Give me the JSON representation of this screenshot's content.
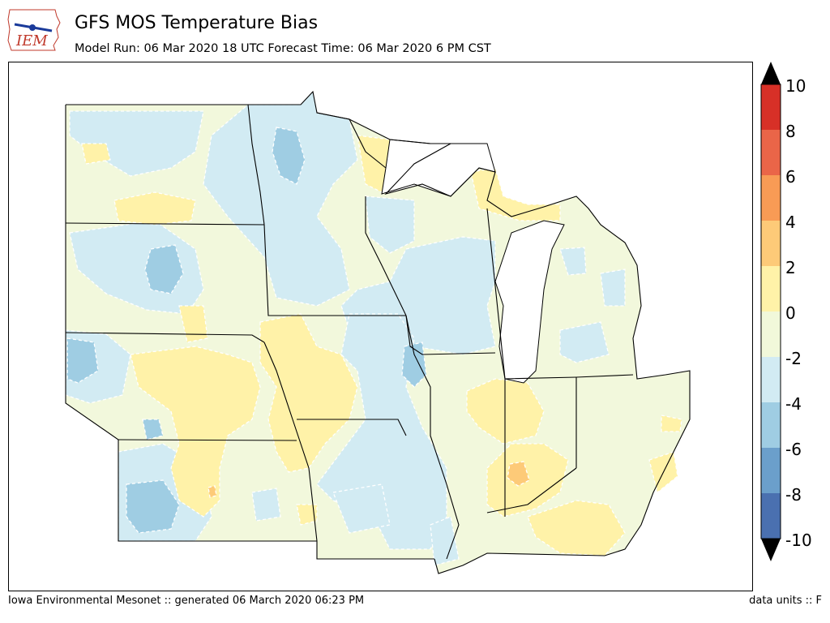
{
  "header": {
    "logo_text": "IEM",
    "title": "GFS MOS Temperature Bias",
    "subtitle": "Model Run: 06 Mar 2020 18 UTC Forecast Time: 06 Mar 2020 6 PM CST"
  },
  "colorbar": {
    "labels": [
      "10",
      "8",
      "6",
      "4",
      "2",
      "0",
      "-2",
      "-4",
      "-6",
      "-8",
      "-10"
    ],
    "colors": [
      "#d73027",
      "#f46d43",
      "#fdae61",
      "#fee090",
      "#ffffbf",
      "#e0f3f8",
      "#abd9e9",
      "#74add1",
      "#4575b4",
      "#313695"
    ],
    "bin_colors_top_to_bottom": [
      "#d73027",
      "#ea6548",
      "#f89b55",
      "#fdca78",
      "#fff2a8",
      "#f1f8da",
      "#d2ebf3",
      "#9fcde3",
      "#6b9fcb",
      "#4a70b0"
    ]
  },
  "map": {
    "background": "#f2f8dc",
    "region": "Upper Midwest (ND, SD, NE, KS, MN, IA, MO, WI, IL, MI, IN, OH, KY)"
  },
  "footer": {
    "left": "Iowa Environmental Mesonet :: generated 06 March 2020 06:23 PM",
    "right": "data units :: F"
  }
}
